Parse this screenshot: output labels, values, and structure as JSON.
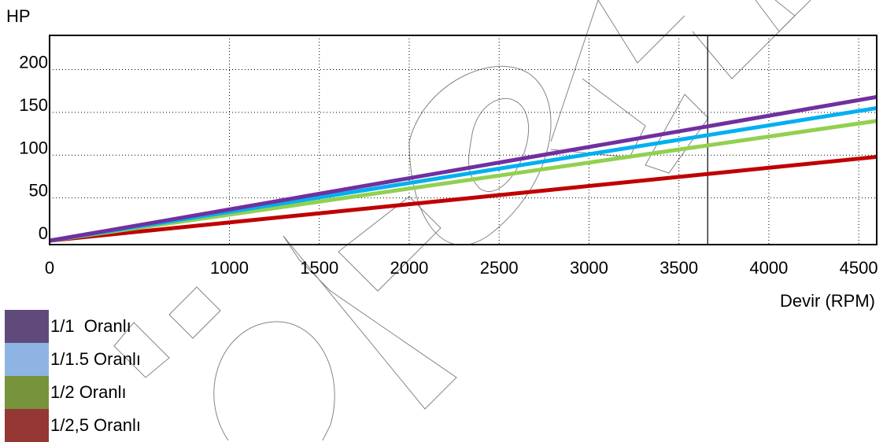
{
  "chart_data": {
    "type": "line",
    "title": "",
    "xlabel": "Devir (RPM)",
    "ylabel": "HP",
    "xlim": [
      0,
      4600
    ],
    "ylim": [
      0,
      240
    ],
    "x_ticks": [
      0,
      1000,
      1500,
      2000,
      2500,
      3000,
      3500,
      4000,
      4500
    ],
    "x_tick_labels": [
      "0",
      "1000",
      "1500",
      "2000",
      "2500",
      "3000",
      "3500",
      "4000",
      "4500"
    ],
    "y_ticks": [
      0,
      50,
      100,
      150,
      200
    ],
    "y_tick_labels": [
      "0",
      "50",
      "100",
      "150",
      "200"
    ],
    "grid": true,
    "vertical_marker_x": 3660,
    "legend_position": "bottom-left",
    "series": [
      {
        "name": "1/1  Oranlı",
        "color": "#7030a0",
        "legend_color": "#604a7b",
        "x": [
          0,
          4600
        ],
        "y": [
          0,
          168
        ]
      },
      {
        "name": "1/1.5 Oranlı",
        "color": "#00b0f0",
        "legend_color": "#8eb4e3",
        "x": [
          0,
          4600
        ],
        "y": [
          0,
          155
        ]
      },
      {
        "name": "1/2 Oranlı",
        "color": "#92d050",
        "legend_color": "#77933c",
        "x": [
          0,
          4600
        ],
        "y": [
          0,
          140
        ]
      },
      {
        "name": "1/2,5 Oranlı",
        "color": "#c00000",
        "legend_color": "#953735",
        "x": [
          0,
          4600
        ],
        "y": [
          0,
          98
        ]
      }
    ]
  }
}
